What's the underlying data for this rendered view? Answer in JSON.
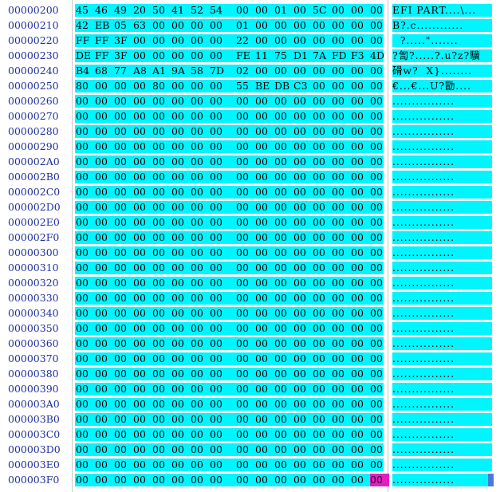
{
  "rows": [
    {
      "offset": "00000200",
      "bytes": [
        "45",
        "46",
        "49",
        "20",
        "50",
        "41",
        "52",
        "54",
        "00",
        "00",
        "01",
        "00",
        "5C",
        "00",
        "00",
        "00"
      ],
      "ascii": "EFI PART....\\..."
    },
    {
      "offset": "00000210",
      "bytes": [
        "42",
        "EB",
        "05",
        "63",
        "00",
        "00",
        "00",
        "00",
        "01",
        "00",
        "00",
        "00",
        "00",
        "00",
        "00",
        "00"
      ],
      "ascii": "B?.c............"
    },
    {
      "offset": "00000220",
      "bytes": [
        "FF",
        "FF",
        "3F",
        "00",
        "00",
        "00",
        "00",
        "00",
        "22",
        "00",
        "00",
        "00",
        "00",
        "00",
        "00",
        "00"
      ],
      "ascii": "  ?.....\"......."
    },
    {
      "offset": "00000230",
      "bytes": [
        "DE",
        "FF",
        "3F",
        "00",
        "00",
        "00",
        "00",
        "00",
        "FE",
        "11",
        "75",
        "D1",
        "7A",
        "FD",
        "F3",
        "4D"
      ],
      "ascii": "?訇?.....?.u?z?驥"
    },
    {
      "offset": "00000240",
      "bytes": [
        "B4",
        "68",
        "77",
        "A8",
        "A1",
        "9A",
        "58",
        "7D",
        "02",
        "00",
        "00",
        "00",
        "00",
        "00",
        "00",
        "00"
      ],
      "ascii": "磆w?  X}........"
    },
    {
      "offset": "00000250",
      "bytes": [
        "80",
        "00",
        "00",
        "00",
        "80",
        "00",
        "00",
        "00",
        "55",
        "BE",
        "DB",
        "C3",
        "00",
        "00",
        "00",
        "00"
      ],
      "ascii": "€...€...U?勖...."
    },
    {
      "offset": "00000260",
      "bytes": [
        "00",
        "00",
        "00",
        "00",
        "00",
        "00",
        "00",
        "00",
        "00",
        "00",
        "00",
        "00",
        "00",
        "00",
        "00",
        "00"
      ],
      "ascii": "................"
    },
    {
      "offset": "00000270",
      "bytes": [
        "00",
        "00",
        "00",
        "00",
        "00",
        "00",
        "00",
        "00",
        "00",
        "00",
        "00",
        "00",
        "00",
        "00",
        "00",
        "00"
      ],
      "ascii": "................"
    },
    {
      "offset": "00000280",
      "bytes": [
        "00",
        "00",
        "00",
        "00",
        "00",
        "00",
        "00",
        "00",
        "00",
        "00",
        "00",
        "00",
        "00",
        "00",
        "00",
        "00"
      ],
      "ascii": "................"
    },
    {
      "offset": "00000290",
      "bytes": [
        "00",
        "00",
        "00",
        "00",
        "00",
        "00",
        "00",
        "00",
        "00",
        "00",
        "00",
        "00",
        "00",
        "00",
        "00",
        "00"
      ],
      "ascii": "................"
    },
    {
      "offset": "000002A0",
      "bytes": [
        "00",
        "00",
        "00",
        "00",
        "00",
        "00",
        "00",
        "00",
        "00",
        "00",
        "00",
        "00",
        "00",
        "00",
        "00",
        "00"
      ],
      "ascii": "................"
    },
    {
      "offset": "000002B0",
      "bytes": [
        "00",
        "00",
        "00",
        "00",
        "00",
        "00",
        "00",
        "00",
        "00",
        "00",
        "00",
        "00",
        "00",
        "00",
        "00",
        "00"
      ],
      "ascii": "................"
    },
    {
      "offset": "000002C0",
      "bytes": [
        "00",
        "00",
        "00",
        "00",
        "00",
        "00",
        "00",
        "00",
        "00",
        "00",
        "00",
        "00",
        "00",
        "00",
        "00",
        "00"
      ],
      "ascii": "................"
    },
    {
      "offset": "000002D0",
      "bytes": [
        "00",
        "00",
        "00",
        "00",
        "00",
        "00",
        "00",
        "00",
        "00",
        "00",
        "00",
        "00",
        "00",
        "00",
        "00",
        "00"
      ],
      "ascii": "................"
    },
    {
      "offset": "000002E0",
      "bytes": [
        "00",
        "00",
        "00",
        "00",
        "00",
        "00",
        "00",
        "00",
        "00",
        "00",
        "00",
        "00",
        "00",
        "00",
        "00",
        "00"
      ],
      "ascii": "................"
    },
    {
      "offset": "000002F0",
      "bytes": [
        "00",
        "00",
        "00",
        "00",
        "00",
        "00",
        "00",
        "00",
        "00",
        "00",
        "00",
        "00",
        "00",
        "00",
        "00",
        "00"
      ],
      "ascii": "................"
    },
    {
      "offset": "00000300",
      "bytes": [
        "00",
        "00",
        "00",
        "00",
        "00",
        "00",
        "00",
        "00",
        "00",
        "00",
        "00",
        "00",
        "00",
        "00",
        "00",
        "00"
      ],
      "ascii": "................"
    },
    {
      "offset": "00000310",
      "bytes": [
        "00",
        "00",
        "00",
        "00",
        "00",
        "00",
        "00",
        "00",
        "00",
        "00",
        "00",
        "00",
        "00",
        "00",
        "00",
        "00"
      ],
      "ascii": "................"
    },
    {
      "offset": "00000320",
      "bytes": [
        "00",
        "00",
        "00",
        "00",
        "00",
        "00",
        "00",
        "00",
        "00",
        "00",
        "00",
        "00",
        "00",
        "00",
        "00",
        "00"
      ],
      "ascii": "................"
    },
    {
      "offset": "00000330",
      "bytes": [
        "00",
        "00",
        "00",
        "00",
        "00",
        "00",
        "00",
        "00",
        "00",
        "00",
        "00",
        "00",
        "00",
        "00",
        "00",
        "00"
      ],
      "ascii": "................"
    },
    {
      "offset": "00000340",
      "bytes": [
        "00",
        "00",
        "00",
        "00",
        "00",
        "00",
        "00",
        "00",
        "00",
        "00",
        "00",
        "00",
        "00",
        "00",
        "00",
        "00"
      ],
      "ascii": "................"
    },
    {
      "offset": "00000350",
      "bytes": [
        "00",
        "00",
        "00",
        "00",
        "00",
        "00",
        "00",
        "00",
        "00",
        "00",
        "00",
        "00",
        "00",
        "00",
        "00",
        "00"
      ],
      "ascii": "................"
    },
    {
      "offset": "00000360",
      "bytes": [
        "00",
        "00",
        "00",
        "00",
        "00",
        "00",
        "00",
        "00",
        "00",
        "00",
        "00",
        "00",
        "00",
        "00",
        "00",
        "00"
      ],
      "ascii": "................"
    },
    {
      "offset": "00000370",
      "bytes": [
        "00",
        "00",
        "00",
        "00",
        "00",
        "00",
        "00",
        "00",
        "00",
        "00",
        "00",
        "00",
        "00",
        "00",
        "00",
        "00"
      ],
      "ascii": "................"
    },
    {
      "offset": "00000380",
      "bytes": [
        "00",
        "00",
        "00",
        "00",
        "00",
        "00",
        "00",
        "00",
        "00",
        "00",
        "00",
        "00",
        "00",
        "00",
        "00",
        "00"
      ],
      "ascii": "................"
    },
    {
      "offset": "00000390",
      "bytes": [
        "00",
        "00",
        "00",
        "00",
        "00",
        "00",
        "00",
        "00",
        "00",
        "00",
        "00",
        "00",
        "00",
        "00",
        "00",
        "00"
      ],
      "ascii": "................"
    },
    {
      "offset": "000003A0",
      "bytes": [
        "00",
        "00",
        "00",
        "00",
        "00",
        "00",
        "00",
        "00",
        "00",
        "00",
        "00",
        "00",
        "00",
        "00",
        "00",
        "00"
      ],
      "ascii": "................"
    },
    {
      "offset": "000003B0",
      "bytes": [
        "00",
        "00",
        "00",
        "00",
        "00",
        "00",
        "00",
        "00",
        "00",
        "00",
        "00",
        "00",
        "00",
        "00",
        "00",
        "00"
      ],
      "ascii": "................"
    },
    {
      "offset": "000003C0",
      "bytes": [
        "00",
        "00",
        "00",
        "00",
        "00",
        "00",
        "00",
        "00",
        "00",
        "00",
        "00",
        "00",
        "00",
        "00",
        "00",
        "00"
      ],
      "ascii": "................"
    },
    {
      "offset": "000003D0",
      "bytes": [
        "00",
        "00",
        "00",
        "00",
        "00",
        "00",
        "00",
        "00",
        "00",
        "00",
        "00",
        "00",
        "00",
        "00",
        "00",
        "00"
      ],
      "ascii": "................"
    },
    {
      "offset": "000003E0",
      "bytes": [
        "00",
        "00",
        "00",
        "00",
        "00",
        "00",
        "00",
        "00",
        "00",
        "00",
        "00",
        "00",
        "00",
        "00",
        "00",
        "00"
      ],
      "ascii": "................"
    },
    {
      "offset": "000003F0",
      "bytes": [
        "00",
        "00",
        "00",
        "00",
        "00",
        "00",
        "00",
        "00",
        "00",
        "00",
        "00",
        "00",
        "00",
        "00",
        "00",
        "00"
      ],
      "ascii": "................"
    }
  ],
  "cursor": {
    "row": 31,
    "byte": 15
  },
  "colors": {
    "selection": "#00f5ff",
    "offset_text": "#1f2fa0",
    "cursor": "#e020c0",
    "ascii_cursor": "#4a7ad8"
  }
}
